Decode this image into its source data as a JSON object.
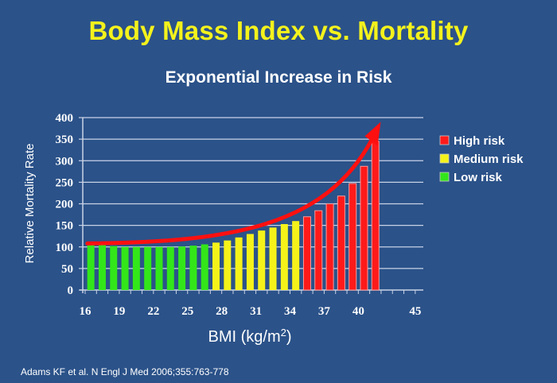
{
  "title": "Body Mass Index vs. Mortality",
  "subtitle": "Exponential Increase in Risk",
  "citation": "Adams KF et al. N Engl J Med 2006;355:763-778",
  "colors": {
    "background": "#2b5289",
    "title": "#f4f21c",
    "high": "#ff1a1a",
    "medium": "#f5f21a",
    "low": "#33e61a",
    "grid": "#c9d3e6",
    "arrow": "#ff1010"
  },
  "chart_data": {
    "type": "bar",
    "title": "Body Mass Index vs. Mortality",
    "subtitle": "Exponential Increase in Risk",
    "xlabel": "BMI (kg/m2)",
    "xlabel_main": "BMI (kg/m",
    "xlabel_sup": "2",
    "xlabel_close": ")",
    "ylabel": "Relative Mortality Rate",
    "ylim": [
      0,
      400
    ],
    "yticks": [
      0,
      50,
      100,
      150,
      200,
      250,
      300,
      350,
      400
    ],
    "xlim": [
      16,
      45.5
    ],
    "xticks": [
      16,
      19,
      22,
      25,
      28,
      31,
      34,
      37,
      40,
      45
    ],
    "grid": true,
    "legend_position": "right",
    "legend": [
      {
        "label": "High risk",
        "category": "high"
      },
      {
        "label": "Medium risk",
        "category": "medium"
      },
      {
        "label": "Low risk",
        "category": "low"
      }
    ],
    "bars": [
      {
        "bmi": 16.5,
        "value": 104,
        "category": "low"
      },
      {
        "bmi": 17.5,
        "value": 104,
        "category": "low"
      },
      {
        "bmi": 18.5,
        "value": 102,
        "category": "low"
      },
      {
        "bmi": 19.5,
        "value": 100,
        "category": "low"
      },
      {
        "bmi": 20.5,
        "value": 100,
        "category": "low"
      },
      {
        "bmi": 21.5,
        "value": 100,
        "category": "low"
      },
      {
        "bmi": 22.5,
        "value": 100,
        "category": "low"
      },
      {
        "bmi": 23.5,
        "value": 100,
        "category": "low"
      },
      {
        "bmi": 24.5,
        "value": 101,
        "category": "low"
      },
      {
        "bmi": 25.5,
        "value": 103,
        "category": "low"
      },
      {
        "bmi": 26.5,
        "value": 106,
        "category": "low"
      },
      {
        "bmi": 27.5,
        "value": 110,
        "category": "medium"
      },
      {
        "bmi": 28.5,
        "value": 115,
        "category": "medium"
      },
      {
        "bmi": 29.5,
        "value": 122,
        "category": "medium"
      },
      {
        "bmi": 30.5,
        "value": 130,
        "category": "medium"
      },
      {
        "bmi": 31.5,
        "value": 138,
        "category": "medium"
      },
      {
        "bmi": 32.5,
        "value": 145,
        "category": "medium"
      },
      {
        "bmi": 33.5,
        "value": 153,
        "category": "medium"
      },
      {
        "bmi": 34.5,
        "value": 160,
        "category": "medium"
      },
      {
        "bmi": 35.5,
        "value": 170,
        "category": "high"
      },
      {
        "bmi": 36.5,
        "value": 184,
        "category": "high"
      },
      {
        "bmi": 37.5,
        "value": 200,
        "category": "high"
      },
      {
        "bmi": 38.5,
        "value": 218,
        "category": "high"
      },
      {
        "bmi": 39.5,
        "value": 247,
        "category": "high"
      },
      {
        "bmi": 40.5,
        "value": 287,
        "category": "high"
      },
      {
        "bmi": 41.5,
        "value": 345,
        "category": "high"
      }
    ],
    "trend_arrow": {
      "label": "exponential trend",
      "from_value": 108,
      "to_value": 390
    }
  }
}
